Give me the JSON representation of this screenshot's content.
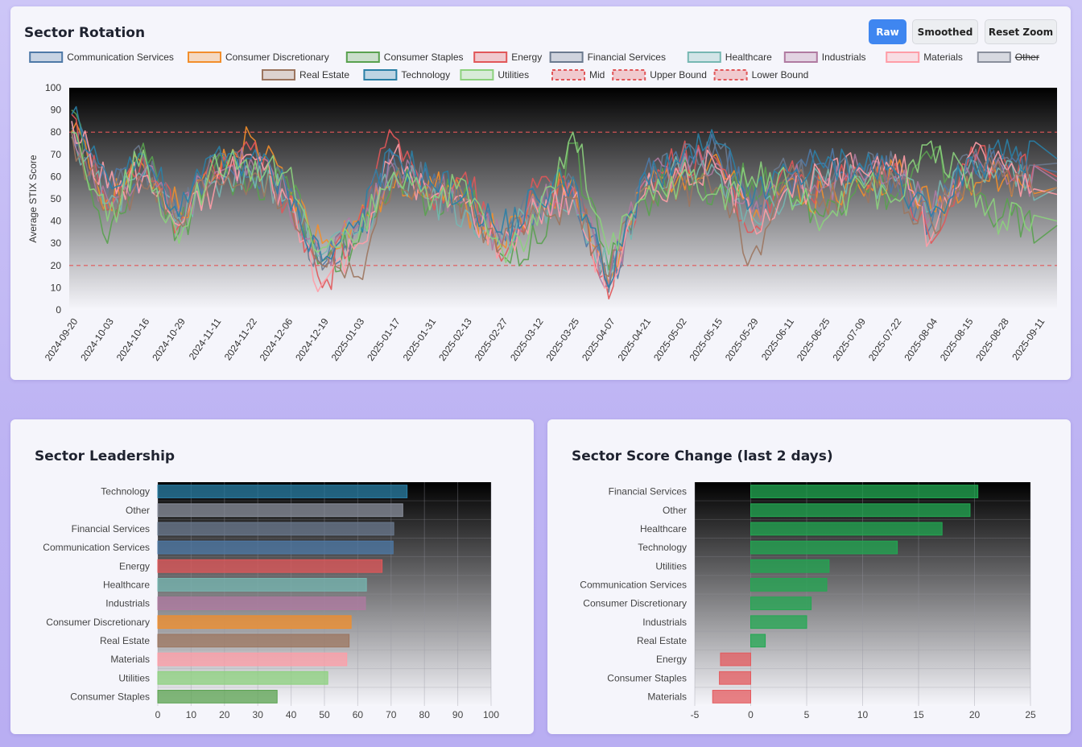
{
  "colors": {
    "communication": "#4e79a7",
    "discretionary": "#f28e2b",
    "staples": "#59a14f",
    "energy": "#e15759",
    "financial": "#6b7a8f",
    "healthcare": "#76b7b2",
    "industrials": "#b07aa1",
    "materials": "#ff9da7",
    "other": "#8a8f9c",
    "realestate": "#9c755f",
    "technology": "#2a7fa6",
    "utilities": "#8cd17d",
    "bound": "#e15759",
    "positive": "#22a852",
    "negative": "#e45a5e"
  },
  "header": {
    "title": "Sector Rotation",
    "buttons": {
      "raw": "Raw",
      "smoothed": "Smoothed",
      "reset": "Reset Zoom"
    }
  },
  "leadership": {
    "title": "Sector Leadership"
  },
  "change": {
    "title": "Sector Score Change (last 2 days)"
  },
  "chart_data": [
    {
      "type": "line",
      "title": "Sector Rotation",
      "ylabel": "Average STIX Score",
      "xlabel": "",
      "ylim": [
        0,
        100
      ],
      "yticks": [
        0,
        10,
        20,
        30,
        40,
        50,
        60,
        70,
        80,
        90,
        100
      ],
      "x_tick_labels": [
        "2024-09-20",
        "2024-10-03",
        "2024-10-16",
        "2024-10-29",
        "2024-11-11",
        "2024-11-22",
        "2024-12-06",
        "2024-12-19",
        "2025-01-03",
        "2025-01-17",
        "2025-01-31",
        "2025-02-13",
        "2025-02-27",
        "2025-03-12",
        "2025-03-25",
        "2025-04-07",
        "2025-04-21",
        "2025-05-02",
        "2025-05-15",
        "2025-05-29",
        "2025-06-11",
        "2025-06-25",
        "2025-07-09",
        "2025-07-22",
        "2025-08-04",
        "2025-08-15",
        "2025-08-28",
        "2025-09-11"
      ],
      "legend": [
        {
          "name": "Communication Services",
          "key": "communication",
          "style": "solid",
          "hidden": false
        },
        {
          "name": "Consumer Discretionary",
          "key": "discretionary",
          "style": "solid",
          "hidden": false
        },
        {
          "name": "Consumer Staples",
          "key": "staples",
          "style": "solid",
          "hidden": false
        },
        {
          "name": "Energy",
          "key": "energy",
          "style": "solid",
          "hidden": false
        },
        {
          "name": "Financial Services",
          "key": "financial",
          "style": "solid",
          "hidden": false
        },
        {
          "name": "Healthcare",
          "key": "healthcare",
          "style": "solid",
          "hidden": false
        },
        {
          "name": "Industrials",
          "key": "industrials",
          "style": "solid",
          "hidden": false
        },
        {
          "name": "Materials",
          "key": "materials",
          "style": "solid",
          "hidden": false
        },
        {
          "name": "Other",
          "key": "other",
          "style": "solid",
          "hidden": true
        },
        {
          "name": "Real Estate",
          "key": "realestate",
          "style": "solid",
          "hidden": false
        },
        {
          "name": "Technology",
          "key": "technology",
          "style": "solid",
          "hidden": false
        },
        {
          "name": "Utilities",
          "key": "utilities",
          "style": "solid",
          "hidden": false
        },
        {
          "name": "Mid",
          "key": "bound",
          "style": "dashed",
          "hidden": false
        },
        {
          "name": "Upper Bound",
          "key": "bound",
          "style": "dashed",
          "hidden": false
        },
        {
          "name": "Lower Bound",
          "key": "bound",
          "style": "dashed",
          "hidden": false
        }
      ],
      "reference_lines": [
        {
          "name": "Upper Bound",
          "value": 80
        },
        {
          "name": "Lower Bound",
          "value": 20
        }
      ],
      "series_anchors_note": "approximate values at each x tick label",
      "series": [
        {
          "name": "Communication Services",
          "key": "communication",
          "values": [
            85,
            55,
            62,
            40,
            70,
            60,
            52,
            20,
            35,
            68,
            55,
            50,
            35,
            48,
            52,
            10,
            62,
            65,
            72,
            48,
            60,
            66,
            63,
            60,
            38,
            66,
            65,
            62
          ]
        },
        {
          "name": "Consumer Discretionary",
          "key": "discretionary",
          "values": [
            80,
            50,
            65,
            45,
            60,
            78,
            55,
            30,
            40,
            55,
            60,
            48,
            30,
            45,
            60,
            12,
            55,
            62,
            70,
            40,
            58,
            50,
            55,
            63,
            45,
            60,
            58,
            55
          ]
        },
        {
          "name": "Consumer Staples",
          "key": "staples",
          "values": [
            90,
            30,
            75,
            35,
            65,
            55,
            60,
            22,
            30,
            60,
            48,
            55,
            25,
            30,
            75,
            18,
            50,
            60,
            55,
            58,
            55,
            42,
            60,
            50,
            68,
            55,
            42,
            38
          ]
        },
        {
          "name": "Energy",
          "key": "energy",
          "values": [
            88,
            45,
            70,
            38,
            62,
            72,
            48,
            10,
            40,
            78,
            52,
            62,
            22,
            55,
            55,
            5,
            58,
            68,
            68,
            35,
            62,
            55,
            62,
            66,
            30,
            65,
            70,
            60
          ]
        },
        {
          "name": "Financial Services",
          "key": "financial",
          "values": [
            82,
            52,
            68,
            42,
            68,
            65,
            55,
            18,
            38,
            66,
            55,
            50,
            30,
            50,
            58,
            8,
            60,
            66,
            76,
            45,
            62,
            60,
            66,
            62,
            42,
            70,
            68,
            66
          ]
        },
        {
          "name": "Healthcare",
          "key": "healthcare",
          "values": [
            78,
            48,
            60,
            42,
            58,
            62,
            50,
            25,
            35,
            62,
            50,
            45,
            32,
            42,
            50,
            15,
            55,
            62,
            62,
            42,
            55,
            55,
            60,
            58,
            45,
            62,
            62,
            55
          ]
        },
        {
          "name": "Industrials",
          "key": "industrials",
          "values": [
            80,
            50,
            62,
            45,
            62,
            68,
            52,
            22,
            38,
            64,
            55,
            50,
            30,
            46,
            55,
            12,
            58,
            64,
            66,
            44,
            58,
            56,
            62,
            60,
            42,
            64,
            64,
            58
          ]
        },
        {
          "name": "Materials",
          "key": "materials",
          "values": [
            85,
            55,
            60,
            38,
            55,
            70,
            50,
            12,
            30,
            70,
            50,
            48,
            28,
            45,
            50,
            10,
            52,
            60,
            64,
            40,
            55,
            58,
            64,
            70,
            32,
            68,
            66,
            52
          ]
        },
        {
          "name": "Real Estate",
          "key": "realestate",
          "values": [
            80,
            45,
            55,
            40,
            60,
            60,
            50,
            20,
            15,
            60,
            50,
            50,
            28,
            42,
            50,
            15,
            55,
            55,
            55,
            25,
            60,
            50,
            58,
            55,
            40,
            60,
            60,
            55
          ]
        },
        {
          "name": "Technology",
          "key": "technology",
          "values": [
            88,
            60,
            70,
            42,
            70,
            68,
            55,
            22,
            40,
            70,
            58,
            52,
            35,
            50,
            60,
            10,
            62,
            66,
            75,
            48,
            62,
            64,
            66,
            62,
            42,
            68,
            68,
            68
          ]
        },
        {
          "name": "Utilities",
          "key": "utilities",
          "values": [
            80,
            40,
            72,
            30,
            70,
            58,
            62,
            28,
            32,
            62,
            45,
            58,
            28,
            38,
            80,
            25,
            50,
            60,
            52,
            60,
            55,
            40,
            58,
            50,
            76,
            55,
            40,
            40
          ]
        }
      ]
    },
    {
      "type": "bar",
      "orientation": "horizontal",
      "title": "Sector Leadership",
      "categories": [
        "Technology",
        "Other",
        "Financial Services",
        "Communication Services",
        "Energy",
        "Healthcare",
        "Industrials",
        "Consumer Discretionary",
        "Real Estate",
        "Materials",
        "Utilities",
        "Consumer Staples"
      ],
      "keys": [
        "technology",
        "other",
        "financial",
        "communication",
        "energy",
        "healthcare",
        "industrials",
        "discretionary",
        "realestate",
        "materials",
        "utilities",
        "staples"
      ],
      "values": [
        74.8,
        73.5,
        70.8,
        70.6,
        67.3,
        62.6,
        62.3,
        58.0,
        57.4,
        56.7,
        51.0,
        35.8
      ],
      "xlim": [
        0,
        100
      ],
      "xticks": [
        0,
        10,
        20,
        30,
        40,
        50,
        60,
        70,
        80,
        90,
        100
      ]
    },
    {
      "type": "bar",
      "orientation": "horizontal",
      "title": "Sector Score Change (last 2 days)",
      "categories": [
        "Financial Services",
        "Other",
        "Healthcare",
        "Technology",
        "Utilities",
        "Communication Services",
        "Consumer Discretionary",
        "Industrials",
        "Real Estate",
        "Energy",
        "Consumer Staples",
        "Materials"
      ],
      "values": [
        20.3,
        19.6,
        17.1,
        13.1,
        7.0,
        6.8,
        5.4,
        5.0,
        1.3,
        -2.7,
        -2.8,
        -3.4
      ],
      "xlim": [
        -5,
        25
      ],
      "xticks": [
        -5,
        0,
        5,
        10,
        15,
        20,
        25
      ]
    }
  ]
}
